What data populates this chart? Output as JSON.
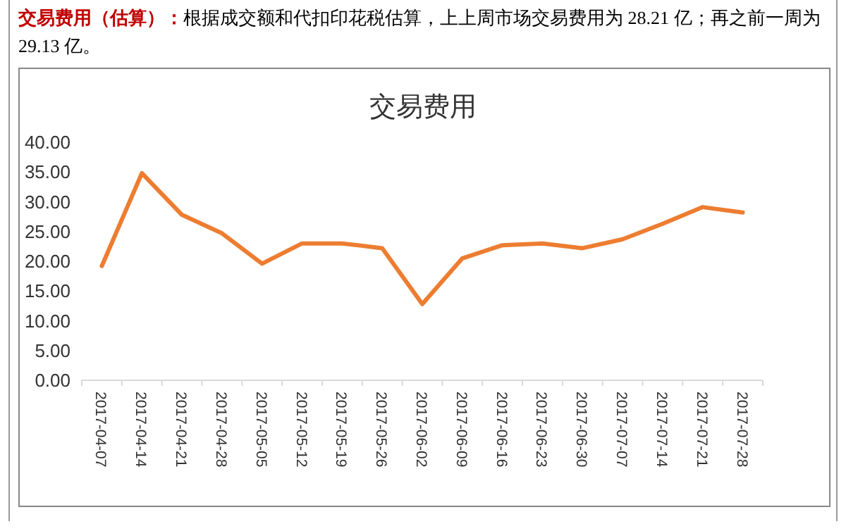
{
  "chart_data": {
    "type": "line",
    "title": "交易费用",
    "annotations": [
      "交易费用（估算）：",
      "根据成交额和代扣印花税估算，上上周市场交易费用为 28.21 亿；再之前一周为 29.13 亿。"
    ],
    "categories": [
      "2017-04-07",
      "2017-04-14",
      "2017-04-21",
      "2017-04-28",
      "2017-05-05",
      "2017-05-12",
      "2017-05-19",
      "2017-05-26",
      "2017-06-02",
      "2017-06-09",
      "2017-06-16",
      "2017-06-23",
      "2017-06-30",
      "2017-07-07",
      "2017-07-14",
      "2017-07-21",
      "2017-07-28"
    ],
    "series": [
      {
        "color": "#ed7d31",
        "values": [
          19.2,
          34.8,
          27.8,
          24.7,
          19.6,
          23.0,
          23.0,
          22.2,
          12.8,
          20.5,
          22.7,
          23.0,
          22.2,
          23.7,
          26.3,
          29.1,
          28.2
        ]
      }
    ],
    "ylim": [
      0,
      40
    ],
    "yticks": [
      {
        "value": 0,
        "label": "0.00"
      },
      {
        "value": 5,
        "label": "5.00"
      },
      {
        "value": 10,
        "label": "10.00"
      },
      {
        "value": 15,
        "label": "15.00"
      },
      {
        "value": 20,
        "label": "20.00"
      },
      {
        "value": 25,
        "label": "25.00"
      },
      {
        "value": 30,
        "label": "30.00"
      },
      {
        "value": 35,
        "label": "35.00"
      },
      {
        "value": 40,
        "label": "40.00"
      }
    ],
    "grid": false,
    "marker": "none",
    "line_style": "solid"
  }
}
